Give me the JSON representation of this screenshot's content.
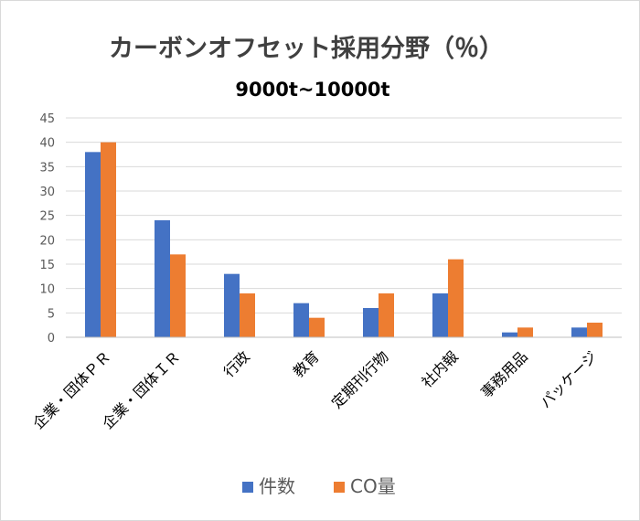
{
  "chart_data": {
    "type": "bar",
    "title": "カーボンオフセット採用分野（％）",
    "subtitle": "9000t~10000t",
    "categories": [
      "企業・団体ＰＲ",
      "企業・団体ＩＲ",
      "行政",
      "教育",
      "定期刊行物",
      "社内報",
      "事務用品",
      "パッケージ"
    ],
    "series": [
      {
        "name": "件数",
        "color": "#4472C4",
        "values": [
          38,
          24,
          13,
          7,
          6,
          9,
          1,
          2
        ]
      },
      {
        "name": "CO量",
        "color": "#ED7D31",
        "values": [
          40,
          17,
          9,
          4,
          9,
          16,
          2,
          3
        ]
      }
    ],
    "ylim": [
      0,
      45
    ],
    "yticks": [
      0,
      5,
      10,
      15,
      20,
      25,
      30,
      35,
      40,
      45
    ],
    "grid": true,
    "legend_position": "bottom"
  }
}
